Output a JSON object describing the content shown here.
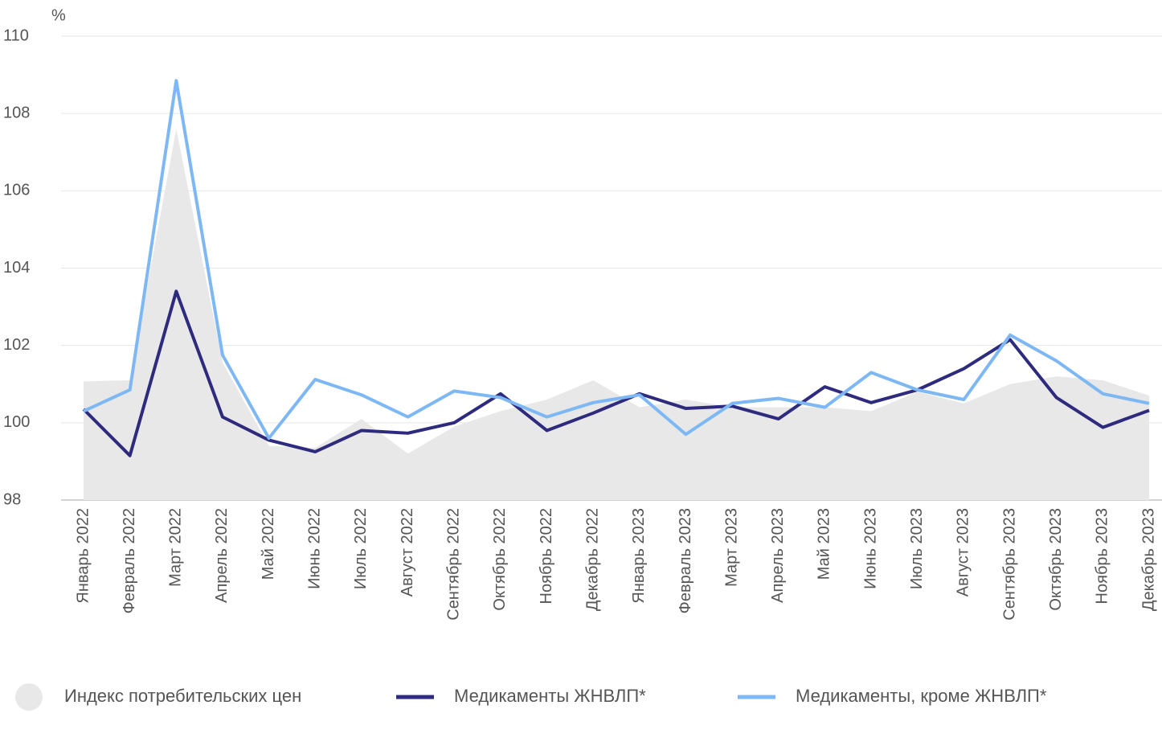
{
  "chart_data": {
    "type": "line",
    "y_label": "%",
    "categories": [
      "Январь 2022",
      "Февраль 2022",
      "Март 2022",
      "Апрель 2022",
      "Май 2022",
      "Июнь 2022",
      "Июль 2022",
      "Август 2022",
      "Сентябрь 2022",
      "Октябрь 2022",
      "Ноябрь 2022",
      "Декабрь 2022",
      "Январь 2023",
      "Февраль 2023",
      "Март 2023",
      "Апрель 2023",
      "Май 2023",
      "Июнь 2023",
      "Июль 2023",
      "Август 2023",
      "Сентябрь 2023",
      "Октябрь 2023",
      "Ноябрь 2023",
      "Декабрь 2023"
    ],
    "series": [
      {
        "name": "Индекс потребительских цен",
        "type": "area",
        "color": "#e8e8e8",
        "values": [
          101.07,
          101.1,
          107.6,
          101.56,
          99.4,
          99.35,
          100.1,
          99.2,
          99.9,
          100.3,
          100.6,
          101.1,
          100.4,
          100.6,
          100.4,
          100.4,
          100.4,
          100.3,
          100.8,
          100.5,
          101.0,
          101.2,
          101.1,
          100.7
        ]
      },
      {
        "name": "Медикаменты ЖНВЛП*",
        "type": "line",
        "color": "#2e2a7e",
        "values": [
          100.35,
          99.15,
          103.4,
          100.15,
          99.55,
          99.25,
          99.8,
          99.73,
          100.0,
          100.75,
          99.8,
          100.25,
          100.75,
          100.37,
          100.43,
          100.1,
          100.93,
          100.52,
          100.85,
          101.4,
          102.15,
          100.65,
          99.88,
          100.32
        ]
      },
      {
        "name": "Медикаменты, кроме ЖНВЛП*",
        "type": "line",
        "color": "#7db8f5",
        "values": [
          100.3,
          100.85,
          108.85,
          101.75,
          99.6,
          101.12,
          100.72,
          100.15,
          100.82,
          100.65,
          100.15,
          100.52,
          100.72,
          99.7,
          100.5,
          100.63,
          100.4,
          101.3,
          100.85,
          100.6,
          102.27,
          101.6,
          100.75,
          100.5
        ]
      }
    ],
    "ylim": [
      98,
      110
    ],
    "yticks": [
      98,
      100,
      102,
      104,
      106,
      108,
      110
    ],
    "grid": true,
    "legend": "bottom"
  }
}
